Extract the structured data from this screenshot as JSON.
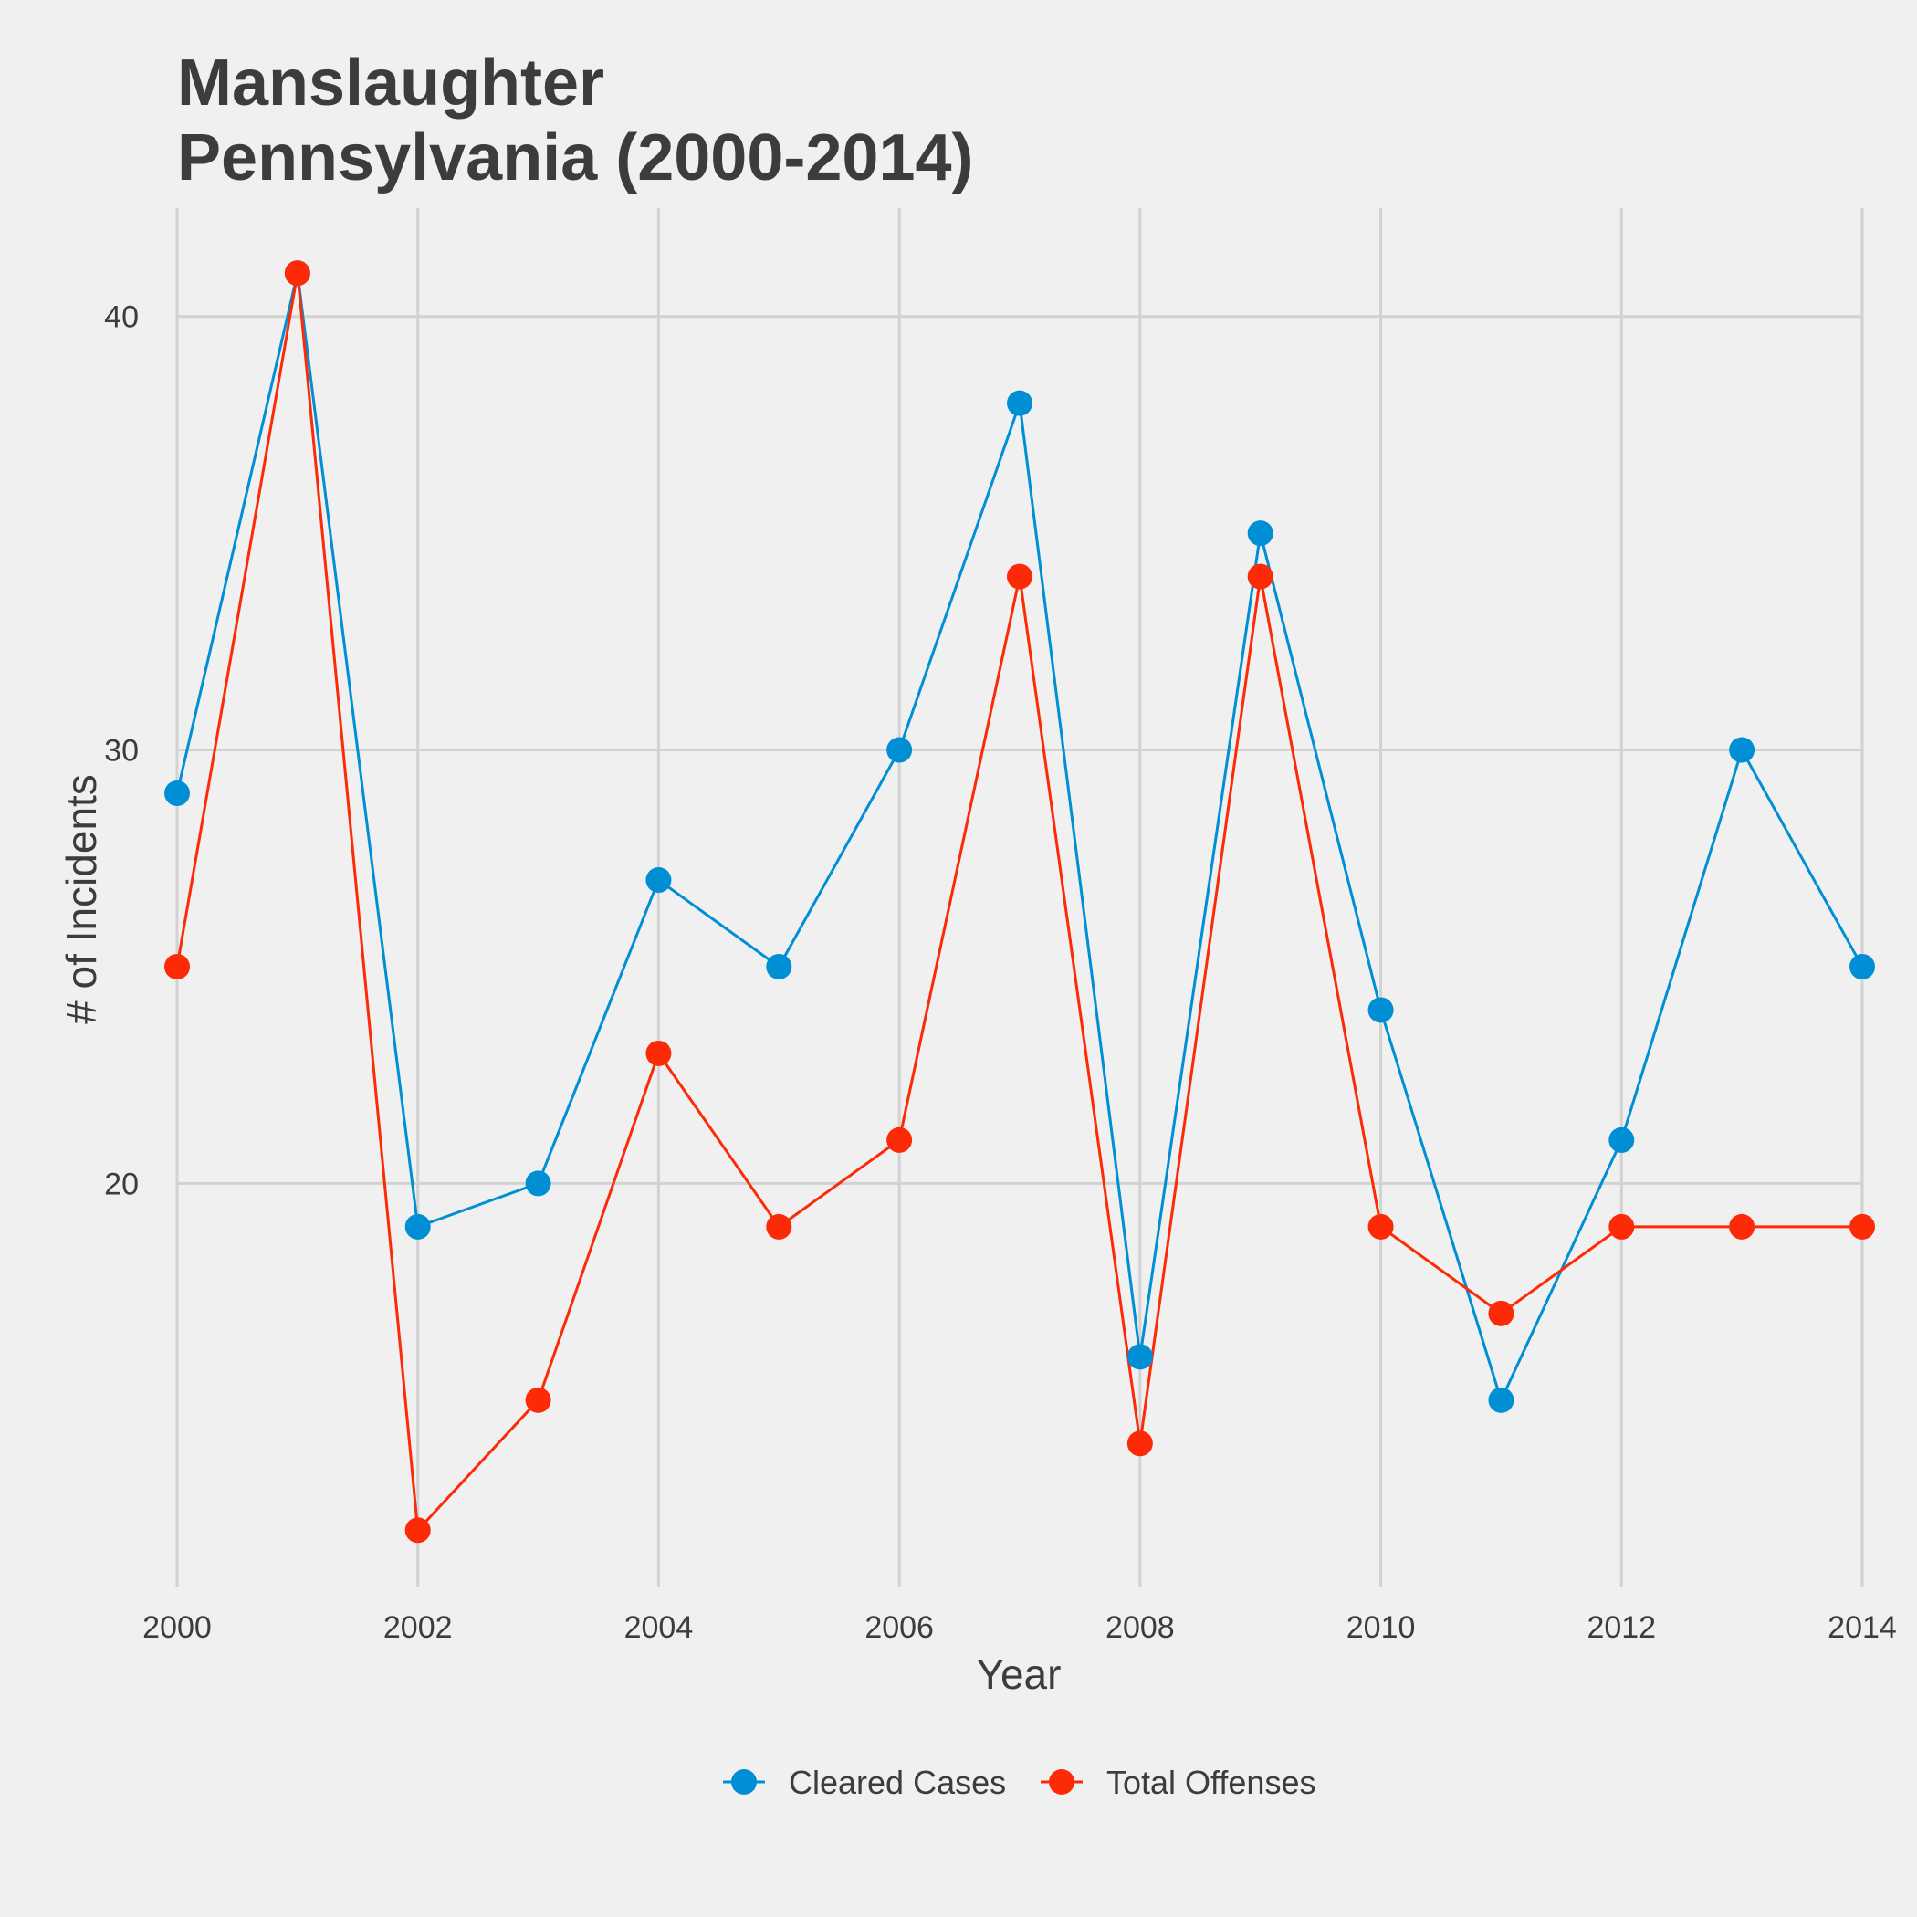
{
  "chart_data": {
    "type": "line",
    "title_line1": "Manslaughter",
    "title_line2": "Pennsylvania (2000-2014)",
    "xlabel": "Year",
    "ylabel": "# of Incidents",
    "x": [
      2000,
      2001,
      2002,
      2003,
      2004,
      2005,
      2006,
      2007,
      2008,
      2009,
      2010,
      2011,
      2012,
      2013,
      2014
    ],
    "x_ticks": [
      "2000",
      "2002",
      "2004",
      "2006",
      "2008",
      "2010",
      "2012",
      "2014"
    ],
    "y_ticks": [
      "20",
      "30",
      "40"
    ],
    "xlim": [
      2000,
      2014
    ],
    "ylim": [
      10.7,
      42.5
    ],
    "grid": true,
    "legend_position": "bottom",
    "series": [
      {
        "name": "Cleared Cases",
        "color": "#008fd5",
        "values": [
          29,
          41,
          19,
          20,
          27,
          25,
          30,
          38,
          16,
          35,
          24,
          15,
          21,
          30,
          25
        ]
      },
      {
        "name": "Total Offenses",
        "color": "#fc2a07",
        "values": [
          25,
          41,
          12,
          15,
          23,
          19,
          21,
          34,
          14,
          34,
          19,
          17,
          19,
          19,
          19
        ]
      }
    ]
  }
}
